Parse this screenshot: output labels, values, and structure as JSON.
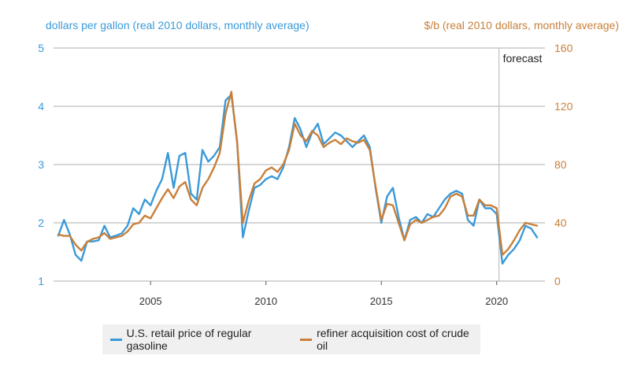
{
  "chart_data": {
    "type": "line",
    "title": "",
    "left_axis": {
      "label": "dollars per gallon (real 2010 dollars, monthly average)",
      "ticks": [
        "1",
        "2",
        "3",
        "4",
        "5"
      ],
      "range": [
        1,
        5
      ],
      "color": "#3a9ad9"
    },
    "right_axis": {
      "label": "$/b (real 2010 dollars, monthly average)",
      "ticks": [
        "0",
        "40",
        "80",
        "120",
        "160"
      ],
      "range": [
        0,
        160
      ],
      "color": "#c87f3a"
    },
    "x_axis": {
      "ticks": [
        "2005",
        "2010",
        "2015",
        "2020"
      ],
      "range": [
        2001.0,
        2022.0
      ]
    },
    "annotation": {
      "label": "forecast",
      "x": 2020.1
    },
    "grid": true,
    "legend_position": "bottom",
    "x": [
      2001.0,
      2001.25,
      2001.5,
      2001.75,
      2002.0,
      2002.25,
      2002.5,
      2002.75,
      2003.0,
      2003.25,
      2003.5,
      2003.75,
      2004.0,
      2004.25,
      2004.5,
      2004.75,
      2005.0,
      2005.25,
      2005.5,
      2005.75,
      2006.0,
      2006.25,
      2006.5,
      2006.75,
      2007.0,
      2007.25,
      2007.5,
      2007.75,
      2008.0,
      2008.25,
      2008.5,
      2008.75,
      2009.0,
      2009.25,
      2009.5,
      2009.75,
      2010.0,
      2010.25,
      2010.5,
      2010.75,
      2011.0,
      2011.25,
      2011.5,
      2011.75,
      2012.0,
      2012.25,
      2012.5,
      2012.75,
      2013.0,
      2013.25,
      2013.5,
      2013.75,
      2014.0,
      2014.25,
      2014.5,
      2014.75,
      2015.0,
      2015.25,
      2015.5,
      2015.75,
      2016.0,
      2016.25,
      2016.5,
      2016.75,
      2017.0,
      2017.25,
      2017.5,
      2017.75,
      2018.0,
      2018.25,
      2018.5,
      2018.75,
      2019.0,
      2019.25,
      2019.5,
      2019.75,
      2020.0,
      2020.25,
      2020.5,
      2020.75,
      2021.0,
      2021.25,
      2021.5,
      2021.75
    ],
    "series": [
      {
        "name": "U.S. retail price of regular gasoline",
        "axis": "left",
        "color": "#3a9ad9",
        "values": [
          1.78,
          2.05,
          1.8,
          1.45,
          1.35,
          1.68,
          1.68,
          1.7,
          1.95,
          1.75,
          1.78,
          1.82,
          1.95,
          2.25,
          2.15,
          2.4,
          2.3,
          2.55,
          2.75,
          3.2,
          2.6,
          3.15,
          3.2,
          2.5,
          2.4,
          3.25,
          3.05,
          3.15,
          3.3,
          4.1,
          4.2,
          3.4,
          1.75,
          2.2,
          2.6,
          2.65,
          2.75,
          2.8,
          2.75,
          2.95,
          3.3,
          3.8,
          3.6,
          3.3,
          3.55,
          3.7,
          3.35,
          3.45,
          3.55,
          3.5,
          3.4,
          3.3,
          3.4,
          3.5,
          3.3,
          2.6,
          2.0,
          2.45,
          2.6,
          2.1,
          1.7,
          2.05,
          2.1,
          2.0,
          2.15,
          2.1,
          2.25,
          2.4,
          2.5,
          2.55,
          2.5,
          2.05,
          1.95,
          2.4,
          2.25,
          2.25,
          2.15,
          1.3,
          1.45,
          1.55,
          1.7,
          1.95,
          1.9,
          1.75
        ]
      },
      {
        "name": "refiner acquisition cost of crude oil",
        "axis": "right",
        "color": "#c87f3a",
        "values": [
          32,
          31,
          31,
          25,
          21,
          27,
          29,
          30,
          33,
          29,
          30,
          31,
          34,
          39,
          40,
          45,
          43,
          50,
          57,
          63,
          57,
          65,
          68,
          56,
          52,
          64,
          70,
          78,
          88,
          115,
          130,
          95,
          40,
          55,
          67,
          70,
          76,
          78,
          75,
          80,
          90,
          108,
          100,
          96,
          103,
          100,
          92,
          95,
          97,
          94,
          98,
          96,
          95,
          97,
          90,
          65,
          42,
          53,
          52,
          40,
          28,
          39,
          42,
          40,
          42,
          44,
          45,
          50,
          58,
          60,
          58,
          45,
          45,
          56,
          52,
          52,
          50,
          18,
          22,
          28,
          35,
          40,
          39,
          38
        ]
      }
    ]
  },
  "legend": {
    "items": [
      {
        "label": "U.S. retail price of regular gasoline",
        "color": "#3a9ad9"
      },
      {
        "label": "refiner acquisition cost of crude oil",
        "color": "#c87f3a"
      }
    ]
  }
}
